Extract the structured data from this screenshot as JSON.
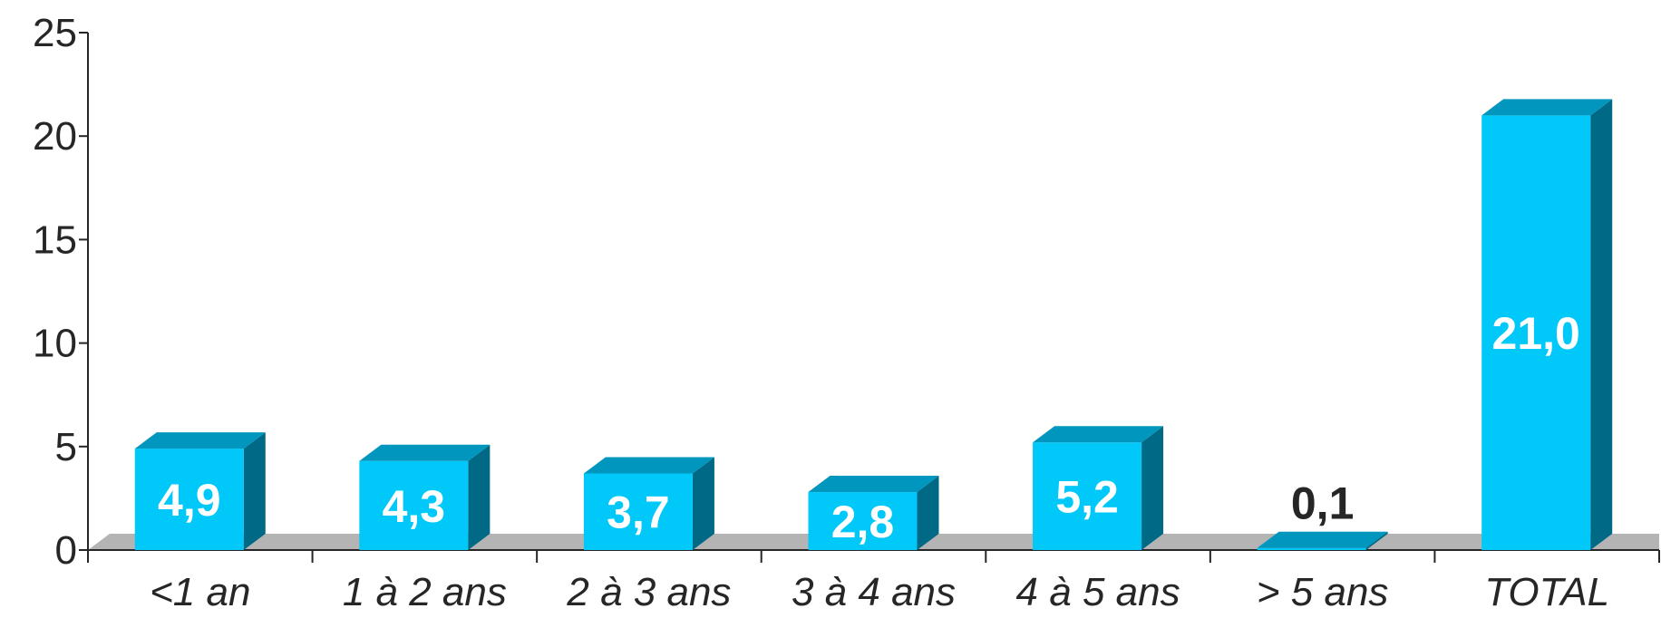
{
  "chart_data": {
    "type": "bar",
    "categories": [
      "<1 an",
      "1 à 2 ans",
      "2 à 3 ans",
      "3 à 4 ans",
      "4 à 5 ans",
      "> 5 ans",
      "TOTAL"
    ],
    "values": [
      4.9,
      4.3,
      3.7,
      2.8,
      5.2,
      0.1,
      21.0
    ],
    "value_labels": [
      "4,9",
      "4,3",
      "3,7",
      "2,8",
      "5,2",
      "0,1",
      "21,0"
    ],
    "y_ticks": [
      "0",
      "5",
      "10",
      "15",
      "20",
      "25"
    ],
    "ylim": [
      0,
      25
    ],
    "title": "",
    "xlabel": "",
    "ylabel": "",
    "grid": false,
    "style": "3d-bar",
    "colors": {
      "bar_front": "#00C8F8",
      "bar_top": "#0096BE",
      "bar_side": "#006985",
      "floor": "#B4B4B4",
      "axis": "#262626",
      "label_inside": "#FFFFFF",
      "label_outside": "#262626"
    }
  }
}
